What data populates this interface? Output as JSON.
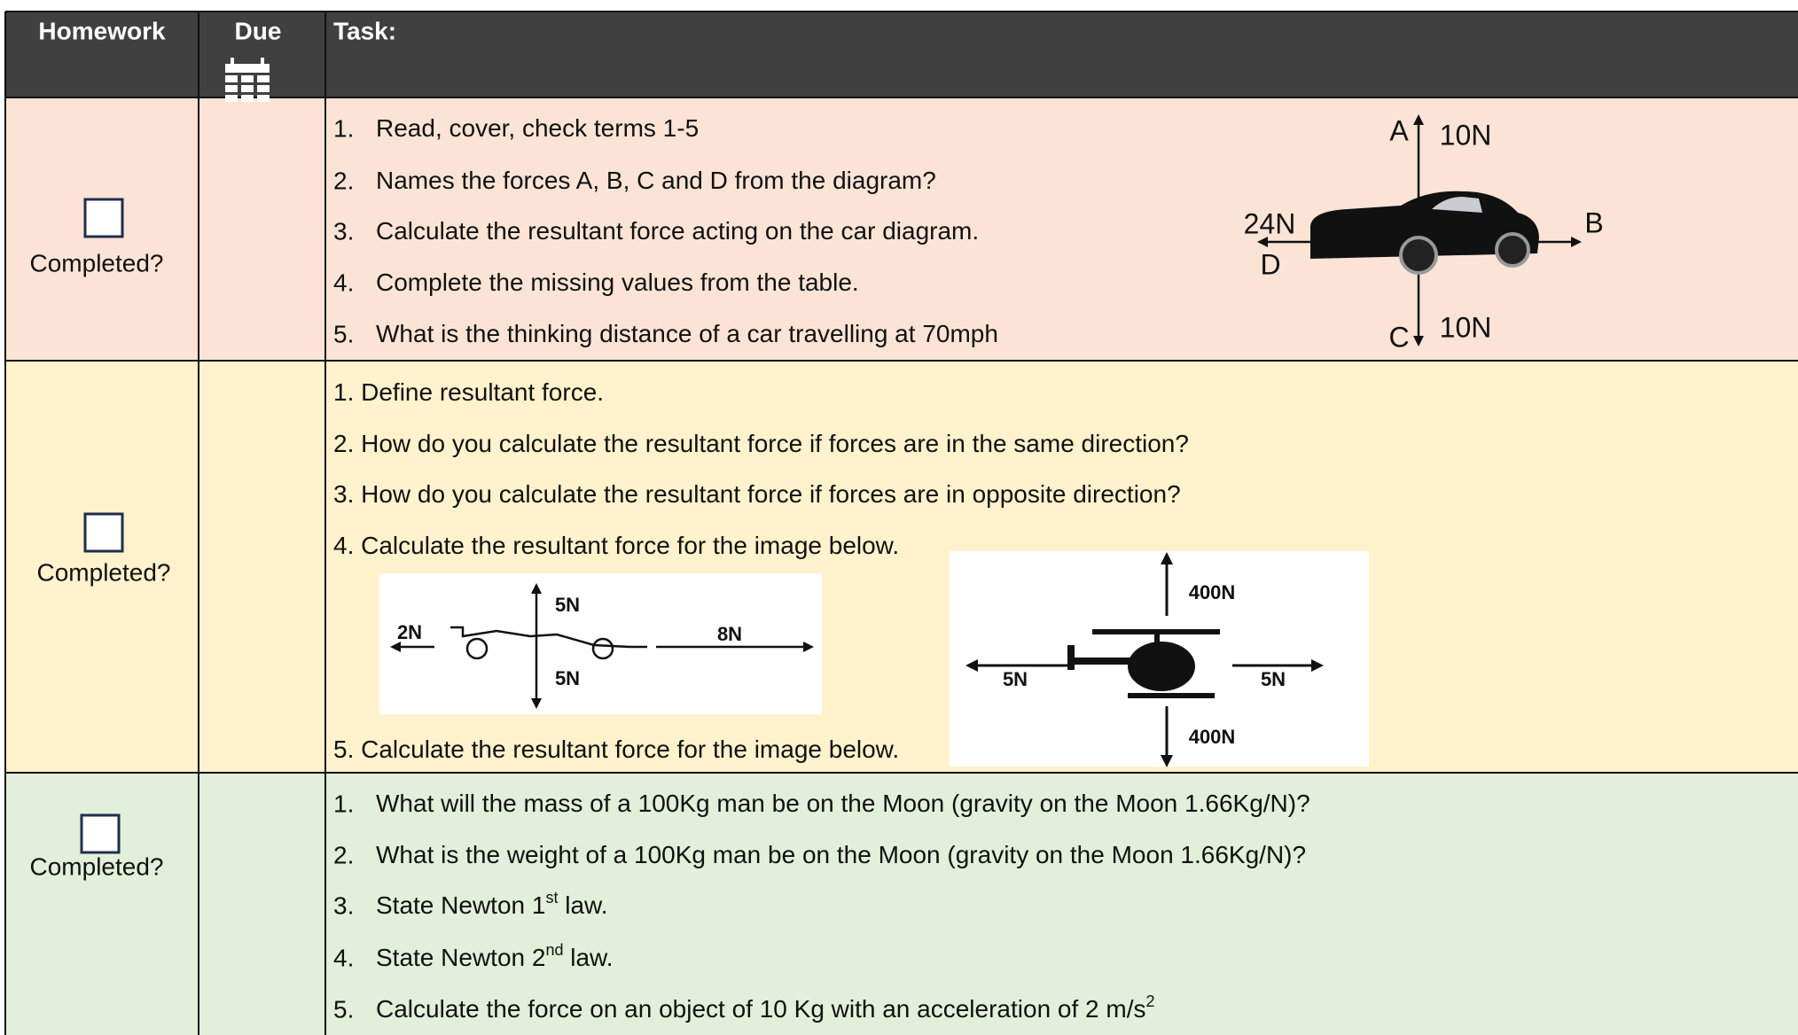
{
  "header": {
    "homework": "Homework",
    "due": "Due",
    "task": "Task:"
  },
  "rows": [
    {
      "status": "Completed?",
      "tasks": [
        {
          "number": "1.",
          "text": "Read, cover, check terms 1-5"
        },
        {
          "number": "2.",
          "text": "Names the forces A, B, C and D from the diagram?"
        },
        {
          "number": "3.",
          "text": "Calculate the resultant force acting on the car diagram."
        },
        {
          "number": "4.",
          "text": "Complete the missing values from the table."
        },
        {
          "number": "5.",
          "text": "What is the thinking distance of a car travelling at 70mph"
        }
      ],
      "diagram": {
        "a": "A",
        "a_force": "10N",
        "d_force": "24N",
        "d": "D",
        "b": "B",
        "c": "C",
        "c_force": "10N"
      }
    },
    {
      "status": "Completed?",
      "tasks": [
        {
          "text": "1. Define resultant force."
        },
        {
          "text": "2. How do you calculate the resultant force if forces are in the same direction?"
        },
        {
          "text": "3. How do you calculate the resultant force if forces are in opposite direction?"
        },
        {
          "text": "4. Calculate the resultant force for the image below."
        },
        {
          "text": "5. Calculate the resultant force for the image below."
        }
      ],
      "cart": {
        "up": "5N",
        "left": "2N",
        "right": "8N",
        "down": "5N"
      },
      "helicopter": {
        "up": "400N",
        "left": "5N",
        "right": "5N",
        "down": "400N"
      }
    },
    {
      "status": "Completed?",
      "tasks": [
        {
          "number": "1.",
          "text": "What will the mass of a 100Kg man be on the Moon (gravity on the Moon 1.66Kg/N)?"
        },
        {
          "number": "2.",
          "text": "What is the weight of a 100Kg man be on the Moon (gravity on the Moon 1.66Kg/N)?"
        },
        {
          "number": "3.",
          "text": "State Newton 1",
          "sup": "st",
          "after": " law."
        },
        {
          "number": "4.",
          "text": "State Newton 2",
          "sup": "nd",
          "after": " law."
        },
        {
          "number": "5.",
          "text": "Calculate the force on an object of 10 Kg with an acceleration of 2 m/s",
          "sup": "2"
        }
      ]
    }
  ]
}
